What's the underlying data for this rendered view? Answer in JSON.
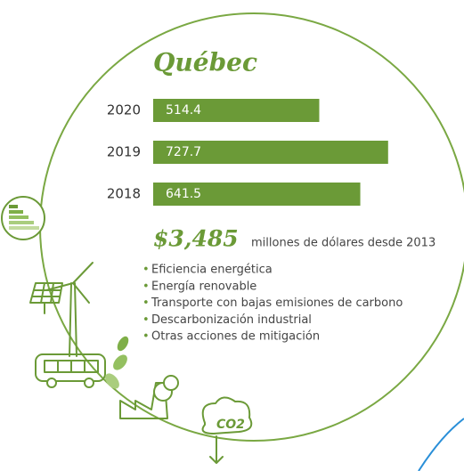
{
  "chart_data": {
    "type": "barh",
    "title": "Québec",
    "categories": [
      "2020",
      "2019",
      "2018"
    ],
    "values": [
      514.4,
      727.7,
      641.5
    ],
    "color": "#6b9a37",
    "xlim": [
      0,
      800
    ],
    "total": "$3,485",
    "total_note": "millones de dólares desde 2013",
    "items": [
      "Eficiencia energética",
      "Energía renovable",
      "Transporte con bajas emisiones de carbono",
      "Descarbonización industrial",
      "Otras acciones de mitigación"
    ],
    "icon_label": "CO2"
  }
}
